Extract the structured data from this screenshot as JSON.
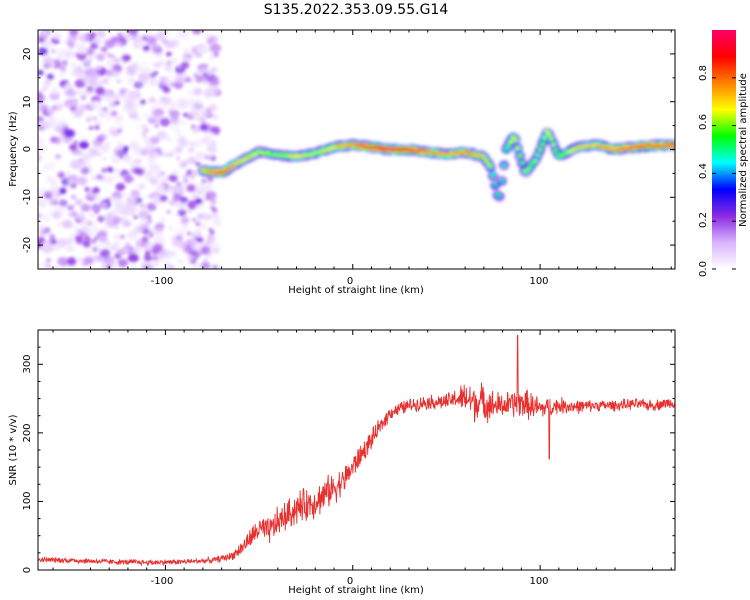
{
  "figure_title": "S135.2022.353.09.55.G14",
  "chart_data": [
    {
      "type": "heatmap",
      "xlabel": "Height of straight line (km)",
      "ylabel": "Frequency (Hz)",
      "xlim": [
        -168,
        172
      ],
      "ylim": [
        -25,
        25
      ],
      "x_ticks": [
        -100,
        0,
        100
      ],
      "y_ticks": [
        -20,
        -10,
        0,
        10,
        20
      ],
      "grid": false,
      "noise_region": {
        "x": [
          -168,
          -72
        ],
        "frequency": [
          -25,
          25
        ],
        "amplitude": [
          0.03,
          0.25
        ]
      },
      "ridge": [
        {
          "x": -80,
          "y": -4.5,
          "a": 0.75
        },
        {
          "x": -70,
          "y": -4.8,
          "a": 0.85
        },
        {
          "x": -60,
          "y": -2.5,
          "a": 0.7
        },
        {
          "x": -50,
          "y": -0.5,
          "a": 0.65
        },
        {
          "x": -40,
          "y": -1.2,
          "a": 0.6
        },
        {
          "x": -30,
          "y": -1.5,
          "a": 0.7
        },
        {
          "x": -20,
          "y": -0.8,
          "a": 0.65
        },
        {
          "x": -10,
          "y": 0.5,
          "a": 0.7
        },
        {
          "x": 0,
          "y": 1.0,
          "a": 0.8
        },
        {
          "x": 10,
          "y": 0.5,
          "a": 0.9
        },
        {
          "x": 20,
          "y": 0.0,
          "a": 0.95
        },
        {
          "x": 30,
          "y": 0.0,
          "a": 0.9
        },
        {
          "x": 40,
          "y": -0.5,
          "a": 0.8
        },
        {
          "x": 50,
          "y": -1.0,
          "a": 0.75
        },
        {
          "x": 60,
          "y": -0.5,
          "a": 0.8
        },
        {
          "x": 70,
          "y": -1.5,
          "a": 0.7
        },
        {
          "x": 74,
          "y": -4.0,
          "a": 0.6
        },
        {
          "x": 78,
          "y": -11.0,
          "a": 0.5
        },
        {
          "x": 82,
          "y": 0.0,
          "a": 0.6
        },
        {
          "x": 86,
          "y": 3.0,
          "a": 0.7
        },
        {
          "x": 92,
          "y": -5.0,
          "a": 0.6
        },
        {
          "x": 98,
          "y": -2.0,
          "a": 0.6
        },
        {
          "x": 104,
          "y": 4.0,
          "a": 0.7
        },
        {
          "x": 110,
          "y": -1.5,
          "a": 0.6
        },
        {
          "x": 120,
          "y": 0.5,
          "a": 0.7
        },
        {
          "x": 130,
          "y": 1.0,
          "a": 0.75
        },
        {
          "x": 140,
          "y": 0.0,
          "a": 0.8
        },
        {
          "x": 150,
          "y": 0.5,
          "a": 0.85
        },
        {
          "x": 160,
          "y": 0.8,
          "a": 0.85
        },
        {
          "x": 172,
          "y": 1.0,
          "a": 0.85
        }
      ],
      "colorbar": {
        "label": "Normalized spectral amplitude",
        "range": [
          0,
          1
        ],
        "ticks": [
          0.0,
          0.2,
          0.4,
          0.6,
          0.8
        ],
        "tick_labels": [
          "0.0",
          "0.2",
          "0.4",
          "0.6",
          "0.8"
        ],
        "colors": [
          "#ffffff",
          "#d9b3ff",
          "#8a2be2",
          "#0000ff",
          "#00ffff",
          "#00ff00",
          "#ffff00",
          "#ff8000",
          "#ff0000",
          "#ff0066"
        ]
      }
    },
    {
      "type": "line",
      "xlabel": "Height of straight line (km)",
      "ylabel": "SNR (10 * v/v)",
      "xlim": [
        -168,
        172
      ],
      "ylim": [
        0,
        350
      ],
      "x_ticks": [
        -100,
        0,
        100
      ],
      "y_ticks": [
        0,
        100,
        200,
        300
      ],
      "grid": false,
      "series": [
        {
          "color": "#e8302e",
          "x": [
            -168,
            -150,
            -130,
            -110,
            -90,
            -75,
            -65,
            -60,
            -55,
            -50,
            -45,
            -40,
            -35,
            -30,
            -25,
            -20,
            -15,
            -10,
            -5,
            0,
            5,
            10,
            15,
            20,
            25,
            30,
            40,
            50,
            55,
            60,
            65,
            70,
            75,
            80,
            85,
            90,
            95,
            100,
            110,
            120,
            130,
            140,
            150,
            160,
            172
          ],
          "y": [
            15,
            14,
            12,
            11,
            12,
            14,
            20,
            30,
            45,
            60,
            55,
            70,
            80,
            90,
            95,
            100,
            110,
            120,
            130,
            150,
            170,
            190,
            210,
            230,
            235,
            240,
            245,
            245,
            250,
            250,
            245,
            245,
            240,
            240,
            242,
            244,
            240,
            235,
            240,
            238,
            240,
            240,
            242,
            240,
            245
          ],
          "noise_amplitude": [
            4,
            4,
            4,
            4,
            4,
            4,
            6,
            10,
            14,
            18,
            20,
            22,
            22,
            24,
            24,
            24,
            24,
            22,
            20,
            18,
            16,
            14,
            12,
            10,
            10,
            10,
            10,
            12,
            14,
            24,
            28,
            26,
            22,
            18,
            20,
            22,
            20,
            16,
            12,
            10,
            8,
            8,
            8,
            8,
            8
          ],
          "spikes": [
            {
              "x": 88,
              "y": 342
            },
            {
              "x": 105,
              "y": 162
            }
          ]
        }
      ]
    }
  ]
}
